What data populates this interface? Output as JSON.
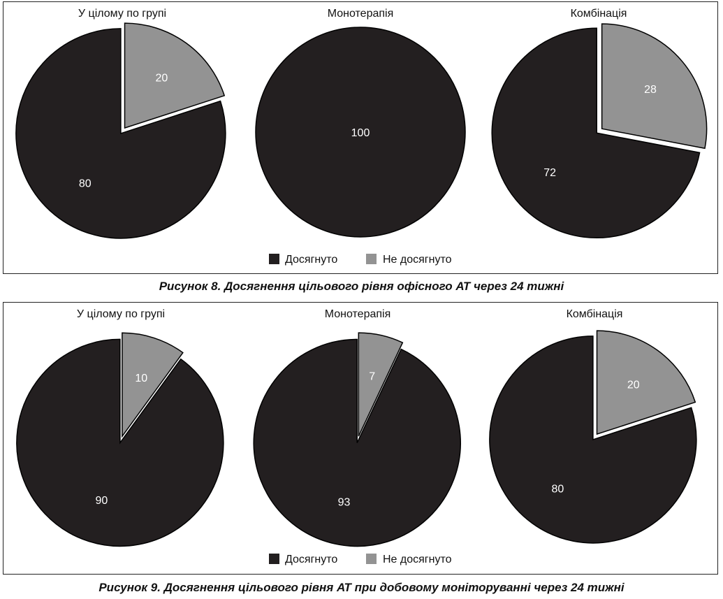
{
  "figures": [
    {
      "caption": "Рисунок 8.  Досягнення цільового рівня офісного АТ через 24 тижні",
      "legend": [
        "Досягнуто",
        "Не досягнуто"
      ],
      "chart_data": [
        {
          "type": "pie",
          "title": "У цілому по групі",
          "labels": [
            "Досягнуто",
            "Не досягнуто"
          ],
          "values": [
            80,
            20
          ],
          "exploded": [
            false,
            true
          ]
        },
        {
          "type": "pie",
          "title": "Монотерапія",
          "labels": [
            "Досягнуто"
          ],
          "values": [
            100
          ],
          "exploded": [
            false
          ]
        },
        {
          "type": "pie",
          "title": "Комбінація",
          "labels": [
            "Досягнуто",
            "Не досягнуто"
          ],
          "values": [
            72,
            28
          ],
          "exploded": [
            false,
            true
          ]
        }
      ]
    },
    {
      "caption": "Рисунок 9.  Досягнення цільового рівня АТ при добовому моніторуванні через 24 тижні",
      "legend": [
        "Досягнуто",
        "Не досягнуто"
      ],
      "chart_data": [
        {
          "type": "pie",
          "title": "У цілому по групі",
          "labels": [
            "Досягнуто",
            "Не досягнуто"
          ],
          "values": [
            90,
            10
          ],
          "exploded": [
            false,
            true
          ]
        },
        {
          "type": "pie",
          "title": "Монотерапія",
          "labels": [
            "Досягнуто",
            "Не досягнуто"
          ],
          "values": [
            93,
            7
          ],
          "exploded": [
            false,
            true
          ]
        },
        {
          "type": "pie",
          "title": "Комбінація",
          "labels": [
            "Досягнуто",
            "Не досягнуто"
          ],
          "values": [
            80,
            20
          ],
          "exploded": [
            false,
            true
          ]
        }
      ]
    }
  ],
  "colors": {
    "achieved": "#231f20",
    "not_achieved": "#939393",
    "slice_stroke": "#000000",
    "label_text": "#ffffff"
  }
}
